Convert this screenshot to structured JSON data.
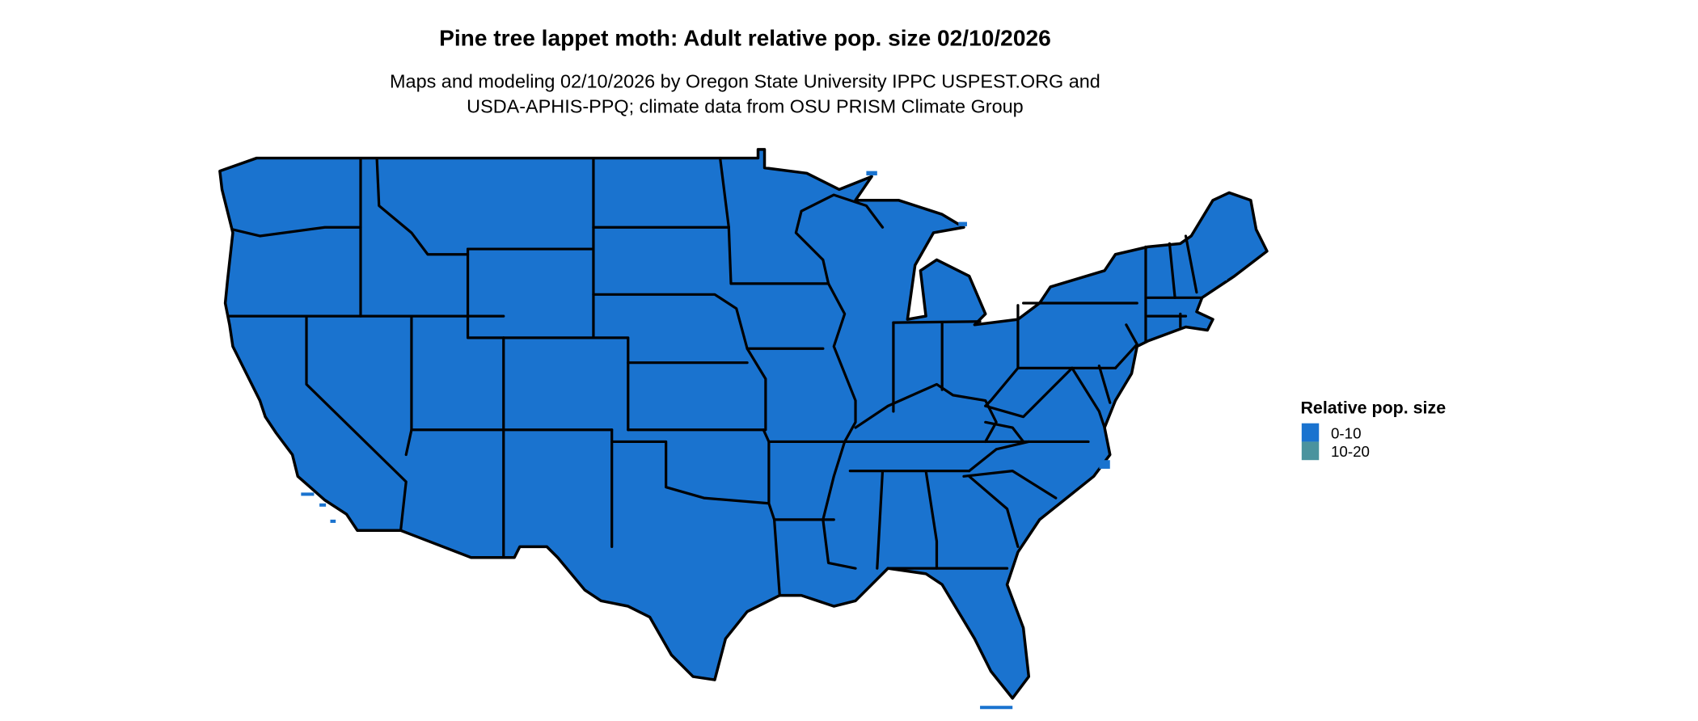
{
  "title": "Pine tree lappet moth: Adult relative pop. size 02/10/2026",
  "subtitle_lines": [
    "Maps and modeling 02/10/2026 by Oregon State University IPPC USPEST.ORG and",
    "USDA-APHIS-PPQ; climate data from OSU PRISM Climate Group"
  ],
  "legend": {
    "title": "Relative pop. size",
    "items": [
      {
        "label": "0-10",
        "color": "#1A73CF"
      },
      {
        "label": "10-20",
        "color": "#4A939E"
      }
    ]
  },
  "map": {
    "region": "Contiguous United States",
    "fill_category": "0-10",
    "fill_color": "#1A73CF",
    "border_color": "#000000"
  }
}
